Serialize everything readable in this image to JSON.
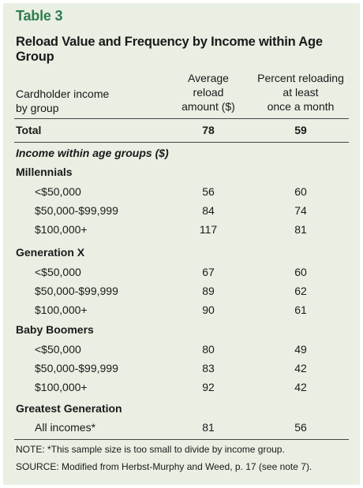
{
  "table_label": "Table 3",
  "title": "Reload Value and Frequency by Income within Age Group",
  "headers": {
    "group_line1": "Cardholder income",
    "group_line2": "by group",
    "c1_line1": "Average",
    "c1_line2": "reload",
    "c1_line3": "amount ($)",
    "c2_line1": "Percent reloading",
    "c2_line2": "at least",
    "c2_line3": "once a month"
  },
  "total": {
    "label": "Total",
    "amount": "78",
    "percent": "59"
  },
  "section_label": "Income within age groups ($)",
  "groups": [
    {
      "name": "Millennials",
      "rows": [
        {
          "income": "<$50,000",
          "amount": "56",
          "percent": "60"
        },
        {
          "income": "$50,000-$99,999",
          "amount": "84",
          "percent": "74"
        },
        {
          "income": "$100,000+",
          "amount": "117",
          "percent": "81"
        }
      ]
    },
    {
      "name": "Generation X",
      "rows": [
        {
          "income": "<$50,000",
          "amount": "67",
          "percent": "60"
        },
        {
          "income": "$50,000-$99,999",
          "amount": "89",
          "percent": "62"
        },
        {
          "income": "$100,000+",
          "amount": "90",
          "percent": "61"
        }
      ]
    },
    {
      "name": "Baby Boomers",
      "rows": [
        {
          "income": "<$50,000",
          "amount": "80",
          "percent": "49"
        },
        {
          "income": "$50,000-$99,999",
          "amount": "83",
          "percent": "42"
        },
        {
          "income": "$100,000+",
          "amount": "92",
          "percent": "42"
        }
      ]
    },
    {
      "name": "Greatest Generation",
      "rows": [
        {
          "income": "All incomes*",
          "amount": "81",
          "percent": "56"
        }
      ]
    }
  ],
  "note": "NOTE: *This sample size is too small to divide by income group.",
  "source": "SOURCE: Modified from Herbst-Murphy and Weed, p. 17 (see note 7).",
  "colors": {
    "panel_bg": "#e9efe3",
    "accent": "#2e7d4f"
  }
}
